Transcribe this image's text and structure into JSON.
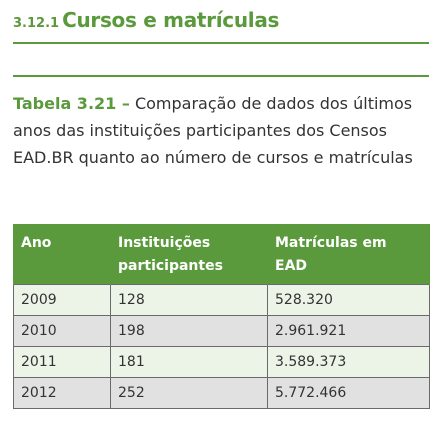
{
  "section": {
    "number": "3.12.1",
    "title": "Cursos e matrículas"
  },
  "caption": {
    "label": "Tabela 3.21 –",
    "text": "Comparação de dados dos últimos anos das instituições participantes dos Censos EAD.BR quanto ao número de cursos e matrículas"
  },
  "table": {
    "headers": [
      "Ano",
      "Instituições participantes",
      "Matrículas em EAD"
    ],
    "rows": [
      [
        "2009",
        "128",
        "528.320"
      ],
      [
        "2010",
        "198",
        "2.961.921"
      ],
      [
        "2011",
        "181",
        "3.589.373"
      ],
      [
        "2012",
        "252",
        "5.772.466"
      ]
    ]
  },
  "colors": {
    "accent": "#5a9a3c",
    "row_odd": "#ecf3e7",
    "row_even": "#e1e1e1"
  }
}
